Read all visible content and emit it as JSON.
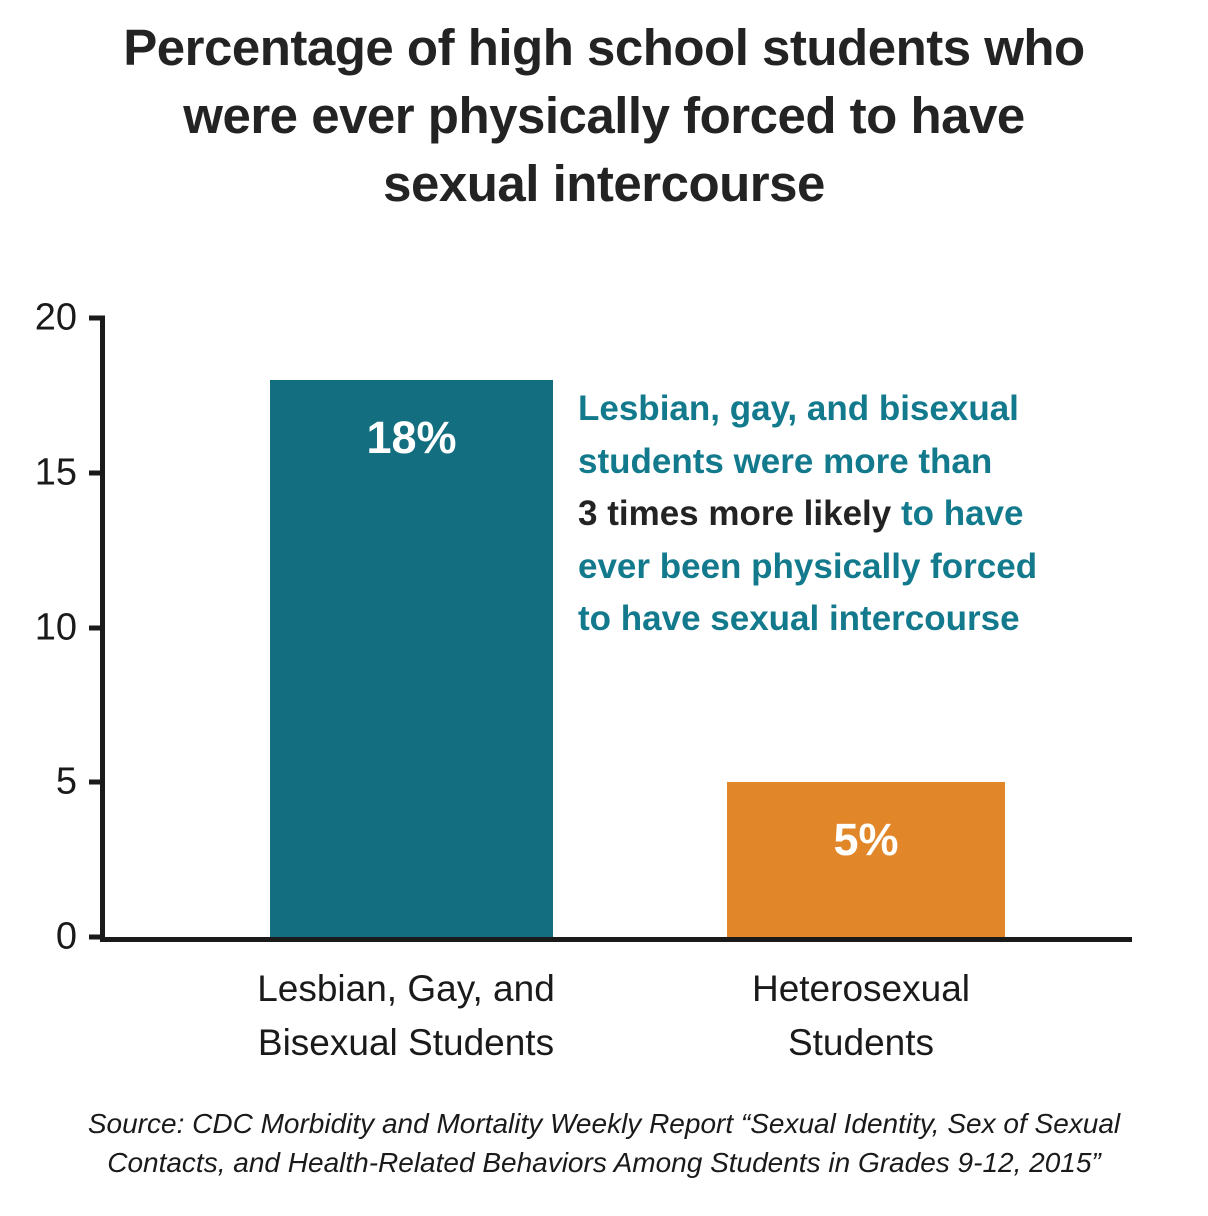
{
  "title": "Percentage of high school students who\nwere ever physically forced to have\nsexual intercourse",
  "chart_data": {
    "type": "bar",
    "title": "Percentage of high school students who were ever physically forced to have sexual intercourse",
    "categories": [
      "Lesbian, Gay, and\nBisexual Students",
      "Heterosexual\nStudents"
    ],
    "values": [
      18,
      5
    ],
    "bar_labels": [
      "18%",
      "5%"
    ],
    "bar_colors": [
      "#136f7f",
      "#e2862a"
    ],
    "yticks": [
      20,
      15,
      10,
      5,
      0
    ],
    "ylim": [
      0,
      20
    ],
    "xlabel": "",
    "ylabel": "",
    "grid": false,
    "legend": false
  },
  "annotation": {
    "line1": "Lesbian, gay, and bisexual",
    "line2": "students were more than",
    "line3_dark": "3 times more likely",
    "line3_teal": " to have",
    "line4": "ever been physically forced",
    "line5": "to have sexual intercourse",
    "teal_color": "#127a8c",
    "dark_color": "#232323"
  },
  "source": "Source: CDC Morbidity and Mortality Weekly Report “Sexual Identity, Sex of Sexual\nContacts, and Health-Related Behaviors Among Students in Grades 9-12, 2015”"
}
